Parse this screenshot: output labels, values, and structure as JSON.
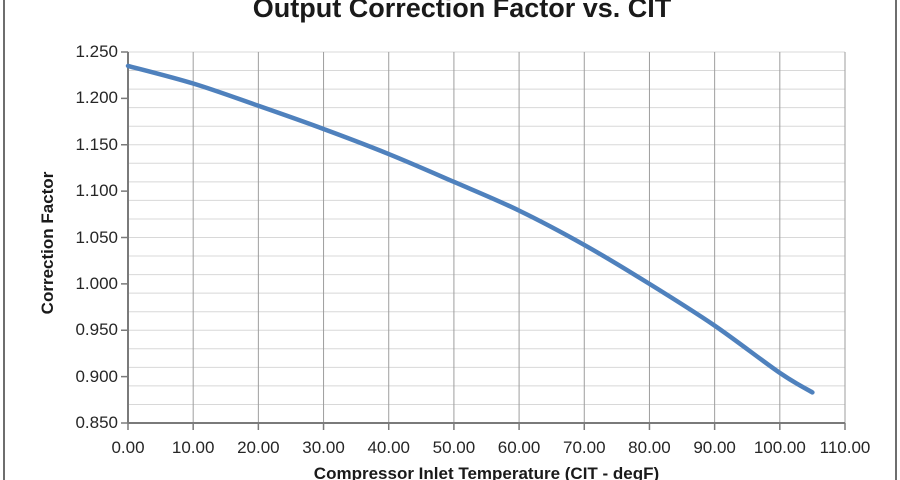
{
  "chart_data": {
    "type": "line",
    "title": "Output Correction Factor vs. CIT",
    "xlabel": "Compressor Inlet Temperature (CIT - degF)",
    "ylabel": "Correction Factor",
    "x": [
      0,
      10,
      20,
      30,
      40,
      50,
      60,
      70,
      80,
      90,
      100,
      105
    ],
    "y": [
      1.235,
      1.216,
      1.192,
      1.167,
      1.14,
      1.11,
      1.079,
      1.042,
      1.0,
      0.955,
      0.904,
      0.883
    ],
    "xlim": [
      0,
      110
    ],
    "ylim": [
      0.85,
      1.25
    ],
    "x_tick_labels": [
      "0.00",
      "10.00",
      "20.00",
      "30.00",
      "40.00",
      "50.00",
      "60.00",
      "70.00",
      "80.00",
      "90.00",
      "100.00",
      "110.00"
    ],
    "y_tick_labels": [
      "0.850",
      "0.900",
      "0.950",
      "1.000",
      "1.050",
      "1.100",
      "1.150",
      "1.200",
      "1.250"
    ],
    "x_major_step": 10,
    "y_label_step": 0.05,
    "y_gridline_step": 0.02,
    "grid": true,
    "legend": false
  },
  "colors": {
    "line": "#4F81BD",
    "h_grid": "#D8D8D8",
    "v_grid": "#9E9E9E",
    "axis": "#7A7A7A",
    "tick": "#7A7A7A",
    "text": "#262626",
    "frame_border": "#6E6E6E"
  }
}
